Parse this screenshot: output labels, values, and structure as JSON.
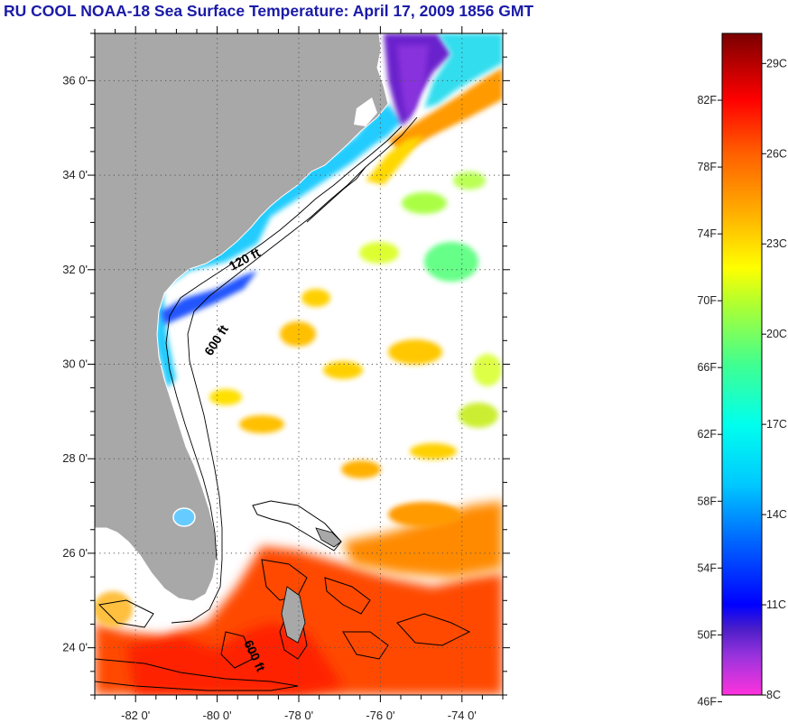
{
  "title": "RU COOL  NOAA-18  Sea Surface Temperature:  April 17, 2009 1856 GMT",
  "map": {
    "lon_range": [
      -83,
      -73
    ],
    "lat_range": [
      23,
      37
    ],
    "lat_labels": [
      {
        "lat": 36,
        "label": "36 0'"
      },
      {
        "lat": 34,
        "label": "34 0'"
      },
      {
        "lat": 32,
        "label": "32 0'"
      },
      {
        "lat": 30,
        "label": "30 0'"
      },
      {
        "lat": 28,
        "label": "28 0'"
      },
      {
        "lat": 26,
        "label": "26 0'"
      },
      {
        "lat": 24,
        "label": "24 0'"
      }
    ],
    "lon_labels": [
      {
        "lon": -82,
        "label": "-82 0'"
      },
      {
        "lon": -80,
        "label": "-80 0'"
      },
      {
        "lon": -78,
        "label": "-78 0'"
      },
      {
        "lon": -76,
        "label": "-76 0'"
      },
      {
        "lon": -74,
        "label": "-74 0'"
      }
    ],
    "gridlines": "dotted",
    "contour_labels": [
      {
        "text": "120 ft"
      },
      {
        "text": "600 ft"
      },
      {
        "text": "600 ft"
      }
    ],
    "colors": {
      "land": "#a8a8a8",
      "cloud": "#ffffff",
      "grid": "#555555"
    }
  },
  "colorbar": {
    "fahrenheit_labels": [
      "82F",
      "78F",
      "74F",
      "70F",
      "66F",
      "62F",
      "58F",
      "54F",
      "50F",
      "46F"
    ],
    "celsius_labels": [
      "29C",
      "26C",
      "23C",
      "20C",
      "17C",
      "14C",
      "11C",
      "8C"
    ],
    "temp_range_c": [
      8,
      30
    ],
    "gradient_stops": [
      {
        "c": 8,
        "color": "#ff33dd"
      },
      {
        "c": 9.3,
        "color": "#9933dd"
      },
      {
        "c": 10.2,
        "color": "#4b1ec8"
      },
      {
        "c": 11,
        "color": "#0000ff"
      },
      {
        "c": 13,
        "color": "#0060ff"
      },
      {
        "c": 15,
        "color": "#00c8ff"
      },
      {
        "c": 17,
        "color": "#00ffee"
      },
      {
        "c": 19,
        "color": "#40ff90"
      },
      {
        "c": 21,
        "color": "#b0ff30"
      },
      {
        "c": 22.2,
        "color": "#ffff00"
      },
      {
        "c": 24,
        "color": "#ffb000"
      },
      {
        "c": 26,
        "color": "#ff6000"
      },
      {
        "c": 27.8,
        "color": "#ff0000"
      },
      {
        "c": 30,
        "color": "#7a0000"
      }
    ]
  }
}
